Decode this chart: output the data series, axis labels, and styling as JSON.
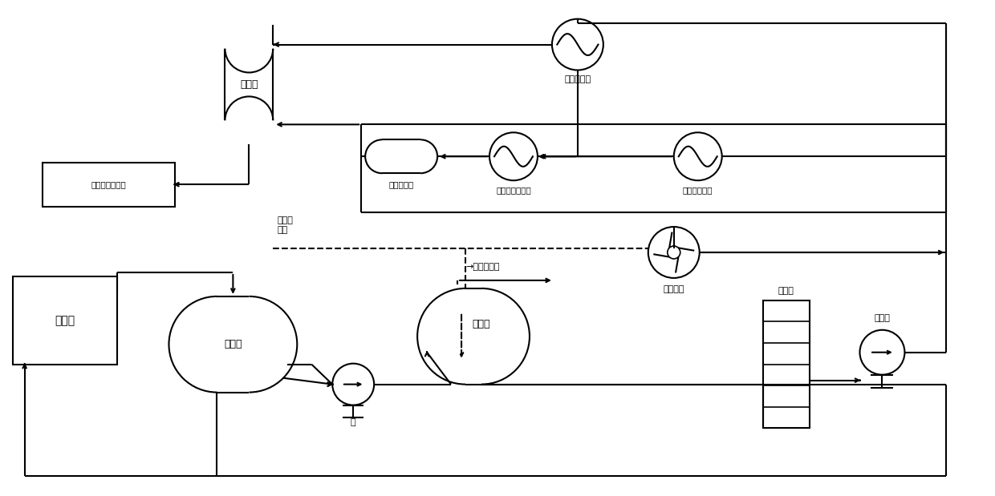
{
  "bg": "#ffffff",
  "lc": "#000000",
  "lw": 1.5,
  "labels": {
    "buf_top": "缓冲罐",
    "cooler": "热解冷却器",
    "reactor": "热解反应器",
    "oil_hx": "热解热油换热器",
    "pre_hx": "热解预换热器",
    "wastewater": "热解处理后废水",
    "wash": "洗涂釜",
    "buf_bot": "缓冲罐",
    "pump": "泵",
    "settler": "沉降罐",
    "fan": "压缩风机",
    "preheater": "预热器",
    "hp_pump": "高压泵",
    "oxidant": "氧化剂\n空气",
    "tail_gas": "尾气去火炬"
  }
}
